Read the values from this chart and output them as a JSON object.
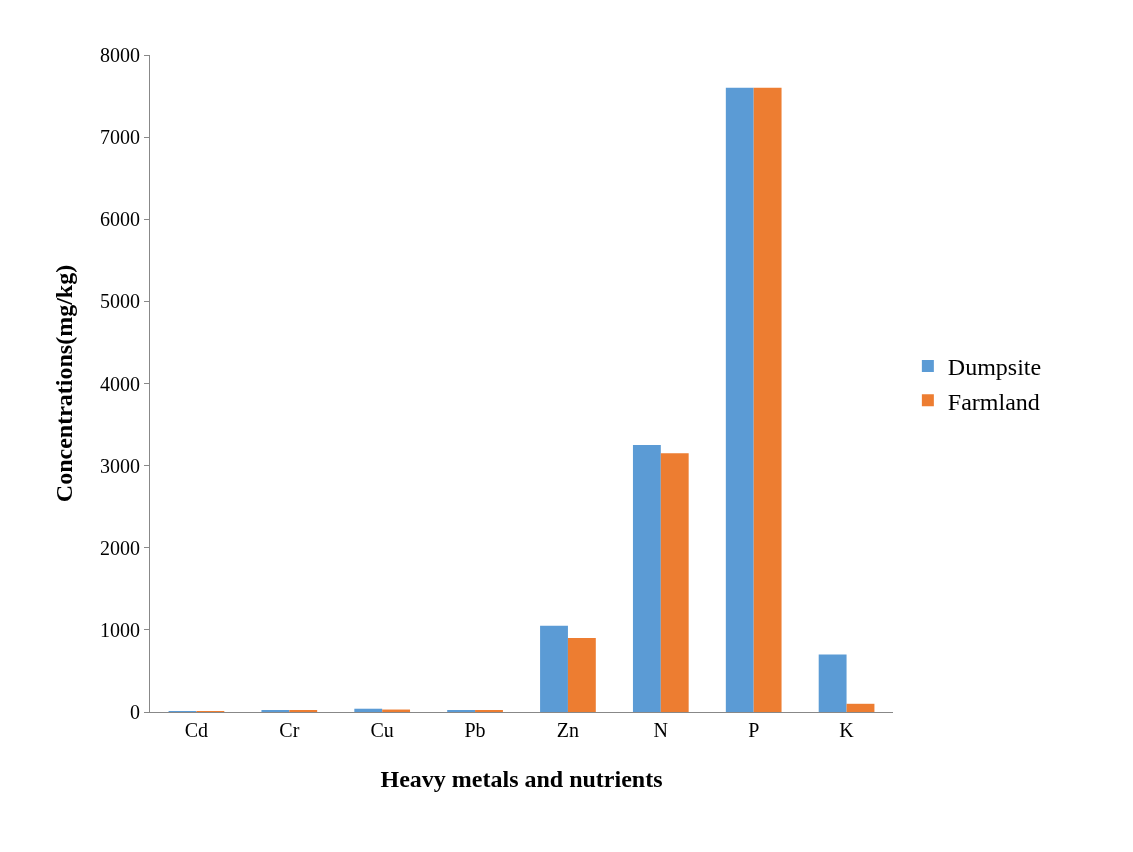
{
  "chart_data": {
    "type": "bar",
    "xlabel": "Heavy metals and nutrients",
    "ylabel": "Concentrations(mg/kg)",
    "categories": [
      "Cd",
      "Cr",
      "Cu",
      "Pb",
      "Zn",
      "N",
      "P",
      "K"
    ],
    "series": [
      {
        "name": "Dumpsite",
        "color": "#5b9bd5",
        "values": [
          10,
          20,
          40,
          20,
          1050,
          3250,
          7600,
          700
        ]
      },
      {
        "name": "Farmland",
        "color": "#ed7d31",
        "values": [
          10,
          20,
          30,
          20,
          900,
          3150,
          7600,
          100
        ]
      }
    ],
    "ylim": [
      0,
      8000
    ],
    "yticks": [
      0,
      1000,
      2000,
      3000,
      4000,
      5000,
      6000,
      7000,
      8000
    ],
    "grid": false,
    "legend": "right"
  }
}
